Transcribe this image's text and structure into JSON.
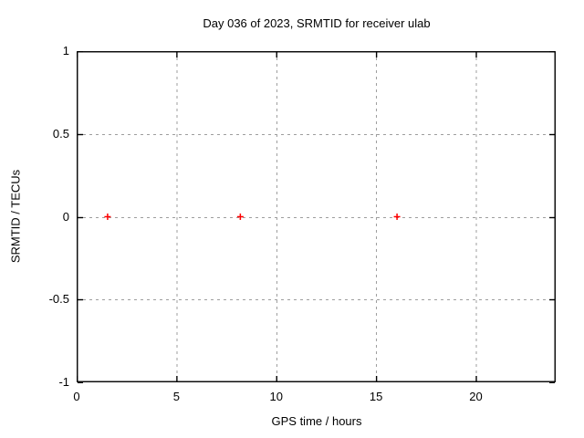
{
  "chart_data": {
    "type": "scatter",
    "title": "Day 036 of 2023, SRMTID for receiver ulab",
    "xlabel": "GPS time / hours",
    "ylabel": "SRMTID / TECUs",
    "xlim": [
      0,
      24
    ],
    "ylim": [
      -1,
      1
    ],
    "xticks": [
      0,
      5,
      10,
      15,
      20
    ],
    "xtick_labels": [
      "0",
      "5",
      "10",
      "15",
      "20"
    ],
    "yticks": [
      -1,
      -0.5,
      0,
      0.5,
      1
    ],
    "ytick_labels": [
      "-1",
      "-0.5",
      "0",
      "0.5",
      "1"
    ],
    "grid": true,
    "legend": "none",
    "series": [
      {
        "name": "SRMTID",
        "marker": "plus",
        "color": "#ff0000",
        "points": [
          {
            "x": 1.55,
            "y": 0.0
          },
          {
            "x": 8.2,
            "y": 0.0
          },
          {
            "x": 16.05,
            "y": 0.0
          }
        ]
      }
    ],
    "colors": {
      "background": "#ffffff",
      "border": "#000000",
      "grid": "#9e9e9e",
      "text": "#000000",
      "marker": "#ff0000"
    }
  }
}
